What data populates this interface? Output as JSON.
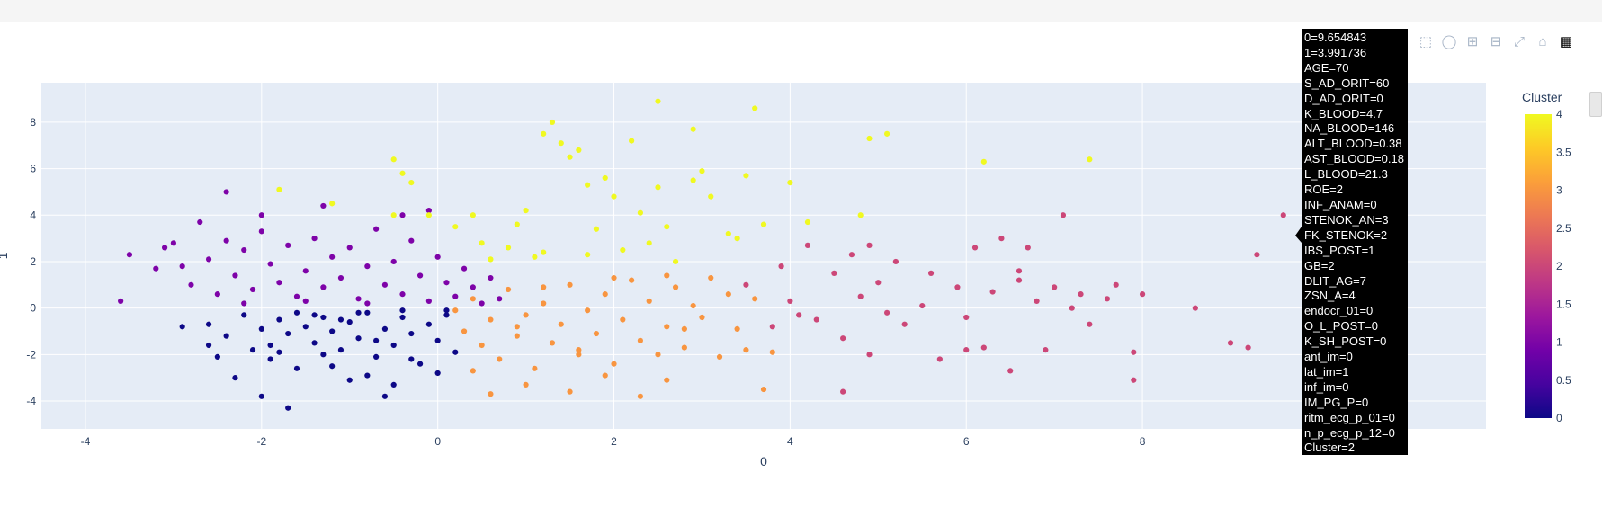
{
  "modebar": {
    "icons": [
      "camera-icon",
      "zoom-icon",
      "pan-icon",
      "box-select-icon",
      "lasso-select-icon",
      "zoom-in-icon",
      "zoom-out-icon",
      "autoscale-icon",
      "reset-axes-icon",
      "plotly-logo-icon"
    ]
  },
  "chart_data": {
    "type": "scatter",
    "xlabel": "0",
    "ylabel": "1",
    "xlim": [
      -4.5,
      11.9
    ],
    "ylim": [
      -5.2,
      9.7
    ],
    "xticks": [
      -4,
      -2,
      0,
      2,
      4,
      6,
      8
    ],
    "yticks": [
      -4,
      -2,
      0,
      2,
      4,
      6,
      8
    ],
    "grid": true,
    "colorbar": {
      "title": "Cluster",
      "min": 0,
      "max": 4,
      "ticks": [
        "0",
        "0.5",
        "1",
        "1.5",
        "2",
        "2.5",
        "3",
        "3.5",
        "4"
      ],
      "colorscale": [
        "#0d0887",
        "#46039f",
        "#7201a8",
        "#9c179e",
        "#bd3786",
        "#d8576b",
        "#ed7953",
        "#fb9f3a",
        "#fdca26",
        "#f0f921"
      ]
    },
    "cluster_colors": {
      "0": "#0d0887",
      "1": "#7e03a8",
      "2": "#cc4778",
      "3": "#f89540",
      "4": "#f0f921"
    },
    "series": [
      {
        "cluster": 0,
        "points": [
          [
            -2.6,
            -0.7
          ],
          [
            -2.4,
            -1.2
          ],
          [
            -2.2,
            -0.3
          ],
          [
            -2.0,
            -0.9
          ],
          [
            -1.9,
            -1.6
          ],
          [
            -1.8,
            -0.5
          ],
          [
            -1.7,
            -1.1
          ],
          [
            -1.6,
            -0.2
          ],
          [
            -1.5,
            -0.8
          ],
          [
            -1.4,
            -1.5
          ],
          [
            -1.3,
            -0.4
          ],
          [
            -1.2,
            -1.0
          ],
          [
            -1.1,
            -1.8
          ],
          [
            -1.0,
            -0.6
          ],
          [
            -0.9,
            -1.3
          ],
          [
            -0.8,
            -0.2
          ],
          [
            -0.7,
            -2.1
          ],
          [
            -0.6,
            -0.9
          ],
          [
            -0.5,
            -1.6
          ],
          [
            -0.4,
            -0.4
          ],
          [
            -0.3,
            -1.1
          ],
          [
            -0.2,
            -2.4
          ],
          [
            -0.1,
            -0.7
          ],
          [
            0.0,
            -1.4
          ],
          [
            0.1,
            -0.3
          ],
          [
            0.2,
            -1.9
          ],
          [
            -1.9,
            -2.2
          ],
          [
            -2.1,
            -1.8
          ],
          [
            -1.6,
            -2.6
          ],
          [
            -0.8,
            -2.9
          ],
          [
            -0.5,
            -3.3
          ],
          [
            -0.6,
            -3.8
          ],
          [
            -1.7,
            -4.3
          ],
          [
            -2.3,
            -3.0
          ],
          [
            -2.0,
            -3.8
          ],
          [
            -2.9,
            -0.8
          ],
          [
            -2.6,
            -1.6
          ],
          [
            -1.2,
            -2.5
          ],
          [
            -1.0,
            -3.1
          ],
          [
            0.0,
            -2.8
          ],
          [
            -0.3,
            -2.2
          ],
          [
            -1.4,
            -0.3
          ],
          [
            -0.9,
            -0.2
          ],
          [
            -0.4,
            -0.1
          ],
          [
            0.1,
            -0.1
          ],
          [
            -1.8,
            -1.9
          ],
          [
            -1.3,
            -2.0
          ],
          [
            -2.5,
            -2.1
          ],
          [
            -1.1,
            -0.5
          ],
          [
            -0.7,
            -1.4
          ]
        ]
      },
      {
        "cluster": 1,
        "points": [
          [
            -3.6,
            0.3
          ],
          [
            -3.5,
            2.3
          ],
          [
            -3.2,
            1.7
          ],
          [
            -3.0,
            2.8
          ],
          [
            -2.8,
            1.0
          ],
          [
            -2.7,
            3.7
          ],
          [
            -2.6,
            2.1
          ],
          [
            -2.5,
            0.6
          ],
          [
            -2.4,
            2.9
          ],
          [
            -2.3,
            1.4
          ],
          [
            -2.2,
            2.5
          ],
          [
            -2.1,
            0.8
          ],
          [
            -2.0,
            3.3
          ],
          [
            -1.9,
            1.9
          ],
          [
            -1.8,
            1.1
          ],
          [
            -1.7,
            2.7
          ],
          [
            -1.6,
            0.5
          ],
          [
            -1.5,
            1.6
          ],
          [
            -1.4,
            3.0
          ],
          [
            -1.3,
            0.9
          ],
          [
            -1.2,
            2.2
          ],
          [
            -1.1,
            1.3
          ],
          [
            -1.0,
            2.6
          ],
          [
            -0.9,
            0.4
          ],
          [
            -0.8,
            1.8
          ],
          [
            -0.7,
            3.4
          ],
          [
            -0.6,
            1.0
          ],
          [
            -0.5,
            2.0
          ],
          [
            -0.4,
            0.6
          ],
          [
            -0.3,
            2.9
          ],
          [
            -0.2,
            1.4
          ],
          [
            -0.1,
            0.3
          ],
          [
            0.0,
            2.2
          ],
          [
            0.1,
            1.1
          ],
          [
            0.2,
            0.5
          ],
          [
            0.3,
            1.7
          ],
          [
            0.4,
            0.9
          ],
          [
            0.5,
            0.2
          ],
          [
            0.6,
            1.3
          ],
          [
            0.7,
            0.4
          ],
          [
            -2.4,
            5.0
          ],
          [
            -2.0,
            4.0
          ],
          [
            -1.3,
            4.4
          ],
          [
            -0.4,
            4.0
          ],
          [
            -0.1,
            4.2
          ],
          [
            -2.9,
            1.8
          ],
          [
            -2.2,
            0.2
          ],
          [
            -1.5,
            0.3
          ],
          [
            -0.8,
            0.2
          ],
          [
            -3.1,
            2.6
          ]
        ]
      },
      {
        "cluster": 2,
        "points": [
          [
            3.5,
            1.0
          ],
          [
            3.8,
            -0.8
          ],
          [
            3.9,
            1.8
          ],
          [
            4.0,
            0.3
          ],
          [
            4.2,
            2.7
          ],
          [
            4.3,
            -0.5
          ],
          [
            4.5,
            1.5
          ],
          [
            4.6,
            -1.3
          ],
          [
            4.7,
            2.3
          ],
          [
            4.8,
            0.5
          ],
          [
            4.9,
            -2.0
          ],
          [
            5.0,
            1.1
          ],
          [
            5.2,
            2.0
          ],
          [
            5.3,
            -0.7
          ],
          [
            5.5,
            0.1
          ],
          [
            5.6,
            1.5
          ],
          [
            5.7,
            -2.2
          ],
          [
            5.9,
            0.9
          ],
          [
            6.0,
            -0.4
          ],
          [
            6.1,
            2.6
          ],
          [
            6.2,
            -1.7
          ],
          [
            6.3,
            0.7
          ],
          [
            6.4,
            3.0
          ],
          [
            6.5,
            -2.7
          ],
          [
            6.6,
            1.2
          ],
          [
            6.7,
            2.6
          ],
          [
            6.8,
            0.3
          ],
          [
            6.9,
            -1.8
          ],
          [
            7.0,
            0.9
          ],
          [
            7.1,
            4.0
          ],
          [
            7.2,
            0.0
          ],
          [
            7.4,
            -0.7
          ],
          [
            7.6,
            0.4
          ],
          [
            7.7,
            1.0
          ],
          [
            7.9,
            -1.9
          ],
          [
            7.9,
            -3.1
          ],
          [
            8.0,
            0.6
          ],
          [
            8.6,
            0.0
          ],
          [
            9.0,
            -1.5
          ],
          [
            9.2,
            -1.7
          ],
          [
            9.3,
            2.3
          ],
          [
            9.6,
            4.0
          ],
          [
            10.9,
            -2.0
          ],
          [
            4.6,
            -3.6
          ],
          [
            4.9,
            2.7
          ],
          [
            4.1,
            -0.3
          ],
          [
            5.1,
            -0.2
          ],
          [
            6.0,
            -1.8
          ],
          [
            6.6,
            1.6
          ],
          [
            7.3,
            0.6
          ]
        ]
      },
      {
        "cluster": 3,
        "points": [
          [
            0.2,
            -0.1
          ],
          [
            0.3,
            -1.0
          ],
          [
            0.4,
            0.4
          ],
          [
            0.5,
            -1.6
          ],
          [
            0.6,
            -0.5
          ],
          [
            0.7,
            -2.2
          ],
          [
            0.8,
            0.8
          ],
          [
            0.9,
            -1.2
          ],
          [
            1.0,
            -0.3
          ],
          [
            1.1,
            -2.6
          ],
          [
            1.2,
            0.2
          ],
          [
            1.3,
            -1.5
          ],
          [
            1.4,
            -0.7
          ],
          [
            1.5,
            1.0
          ],
          [
            1.6,
            -2.0
          ],
          [
            1.7,
            -0.1
          ],
          [
            1.8,
            -1.1
          ],
          [
            1.9,
            0.6
          ],
          [
            2.0,
            -2.4
          ],
          [
            2.1,
            -0.5
          ],
          [
            2.2,
            1.2
          ],
          [
            2.3,
            -1.4
          ],
          [
            2.4,
            0.3
          ],
          [
            2.5,
            -2.0
          ],
          [
            2.6,
            -0.8
          ],
          [
            2.7,
            0.9
          ],
          [
            2.8,
            -1.7
          ],
          [
            2.9,
            0.1
          ],
          [
            3.0,
            -0.4
          ],
          [
            3.1,
            1.3
          ],
          [
            3.2,
            -2.1
          ],
          [
            3.3,
            0.6
          ],
          [
            3.4,
            -0.9
          ],
          [
            3.5,
            -1.8
          ],
          [
            3.6,
            0.4
          ],
          [
            3.7,
            -3.5
          ],
          [
            0.6,
            -3.7
          ],
          [
            1.0,
            -3.3
          ],
          [
            1.5,
            -3.6
          ],
          [
            2.3,
            -3.8
          ],
          [
            2.6,
            -3.1
          ],
          [
            1.9,
            -2.9
          ],
          [
            0.4,
            -2.7
          ],
          [
            2.0,
            1.3
          ],
          [
            2.6,
            1.4
          ],
          [
            1.2,
            0.9
          ],
          [
            0.9,
            -0.8
          ],
          [
            1.6,
            -1.8
          ],
          [
            2.8,
            -0.9
          ],
          [
            3.8,
            -1.9
          ]
        ]
      },
      {
        "cluster": 4,
        "points": [
          [
            -1.8,
            5.1
          ],
          [
            -1.2,
            4.5
          ],
          [
            -0.5,
            6.4
          ],
          [
            -0.4,
            5.8
          ],
          [
            -0.3,
            5.4
          ],
          [
            -0.5,
            4.0
          ],
          [
            -0.1,
            4.0
          ],
          [
            0.2,
            3.5
          ],
          [
            0.4,
            4.0
          ],
          [
            0.5,
            2.8
          ],
          [
            0.8,
            2.6
          ],
          [
            0.9,
            3.6
          ],
          [
            1.0,
            4.2
          ],
          [
            1.1,
            2.2
          ],
          [
            1.2,
            7.5
          ],
          [
            1.3,
            8.0
          ],
          [
            1.4,
            7.1
          ],
          [
            1.5,
            6.5
          ],
          [
            1.6,
            6.8
          ],
          [
            1.7,
            5.3
          ],
          [
            1.8,
            3.4
          ],
          [
            1.9,
            5.6
          ],
          [
            2.0,
            4.8
          ],
          [
            2.1,
            2.5
          ],
          [
            2.2,
            7.2
          ],
          [
            2.3,
            4.1
          ],
          [
            2.4,
            2.8
          ],
          [
            2.5,
            5.2
          ],
          [
            2.6,
            3.5
          ],
          [
            2.7,
            2.0
          ],
          [
            2.9,
            7.7
          ],
          [
            3.0,
            5.9
          ],
          [
            3.1,
            4.8
          ],
          [
            3.3,
            3.2
          ],
          [
            3.5,
            5.7
          ],
          [
            3.6,
            8.6
          ],
          [
            3.7,
            3.6
          ],
          [
            4.0,
            5.4
          ],
          [
            4.2,
            3.7
          ],
          [
            4.8,
            4.0
          ],
          [
            4.9,
            7.3
          ],
          [
            5.1,
            7.5
          ],
          [
            6.2,
            6.3
          ],
          [
            7.4,
            6.4
          ],
          [
            2.5,
            8.9
          ],
          [
            1.7,
            2.3
          ],
          [
            0.6,
            2.1
          ],
          [
            1.2,
            2.4
          ],
          [
            2.9,
            5.5
          ],
          [
            3.4,
            3.0
          ]
        ]
      }
    ]
  },
  "hover": {
    "lines": [
      "0=9.654843",
      "1=3.991736",
      "AGE=70",
      "S_AD_ORIT=60",
      "D_AD_ORIT=0",
      "K_BLOOD=4.7",
      "NA_BLOOD=146",
      "ALT_BLOOD=0.38",
      "AST_BLOOD=0.18",
      "L_BLOOD=21.3",
      "ROE=2",
      "INF_ANAM=0",
      "STENOK_AN=3",
      "FK_STENOK=2",
      "IBS_POST=1",
      "GB=2",
      "DLIT_AG=7",
      "ZSN_A=4",
      "endocr_01=0",
      "O_L_POST=0",
      "K_SH_POST=0",
      "ant_im=0",
      "lat_im=1",
      "inf_im=0",
      "IM_PG_P=0",
      "ritm_ecg_p_01=0",
      "n_p_ecg_p_12=0",
      "Cluster=2"
    ]
  }
}
